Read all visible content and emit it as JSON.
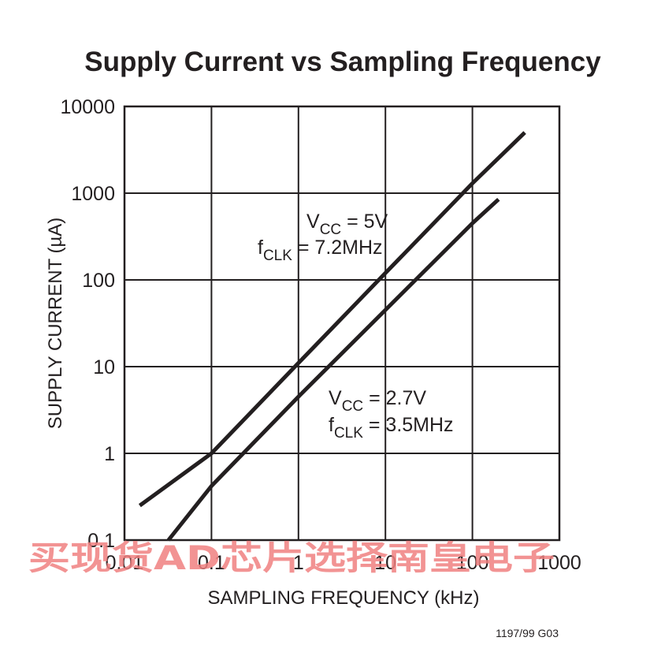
{
  "chart_data": {
    "type": "line",
    "title": "Supply Current vs Sampling Frequency",
    "xlabel": "SAMPLING FREQUENCY (kHz)",
    "ylabel": "SUPPLY CURRENT (µA)",
    "xscale": "log",
    "yscale": "log",
    "xlim": [
      0.01,
      1000
    ],
    "ylim": [
      0.1,
      10000
    ],
    "grid": true,
    "xticks": [
      "0.01",
      "0.1",
      "1",
      "10",
      "100",
      "1000"
    ],
    "yticks": [
      "10000",
      "1000",
      "100",
      "10",
      "1",
      "0.1"
    ],
    "series": [
      {
        "annotation": {
          "main1": "V",
          "sub1": "CC",
          "rest1": " = 5V",
          "main2": "f",
          "sub2": "CLK",
          "rest2": " = 7.2MHz"
        },
        "x": [
          0.015,
          0.1,
          1,
          10,
          100,
          400
        ],
        "y": [
          0.25,
          1.0,
          11,
          120,
          1300,
          5000
        ]
      },
      {
        "annotation": {
          "main1": "V",
          "sub1": "CC",
          "rest1": " = 2.7V",
          "main2": "f",
          "sub2": "CLK",
          "rest2": " = 3.5MHz"
        },
        "x": [
          0.032,
          0.1,
          1,
          10,
          100,
          200
        ],
        "y": [
          0.1,
          0.42,
          4.5,
          45,
          450,
          850
        ]
      }
    ]
  },
  "figure_code": "1197/99 G03",
  "watermark": "买现货AD芯片选择南皇电子"
}
